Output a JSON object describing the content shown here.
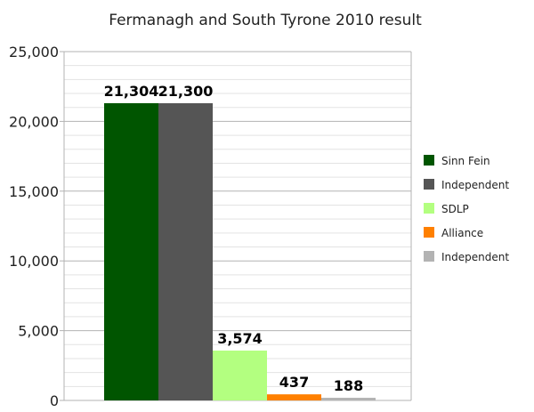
{
  "chart_data": {
    "type": "bar",
    "title": "Fermanagh and South Tyrone 2010 result",
    "xlabel": "",
    "ylabel": "",
    "ylim": [
      0,
      25000
    ],
    "yticks": [
      0,
      5000,
      10000,
      15000,
      20000,
      25000
    ],
    "ytick_labels": [
      "0",
      "5,000",
      "10,000",
      "15,000",
      "20,000",
      "25,000"
    ],
    "grid": true,
    "legend": "right",
    "series": [
      {
        "name": "Sinn Fein",
        "value": 21304,
        "label": "21,304",
        "color": "#005500"
      },
      {
        "name": "Independent",
        "value": 21300,
        "label": "21,300",
        "color": "#555555"
      },
      {
        "name": "SDLP",
        "value": 3574,
        "label": "3,574",
        "color": "#b3ff80"
      },
      {
        "name": "Alliance",
        "value": 437,
        "label": "437",
        "color": "#ff8000"
      },
      {
        "name": "Independent",
        "value": 188,
        "label": "188",
        "color": "#b3b3b3"
      }
    ]
  }
}
